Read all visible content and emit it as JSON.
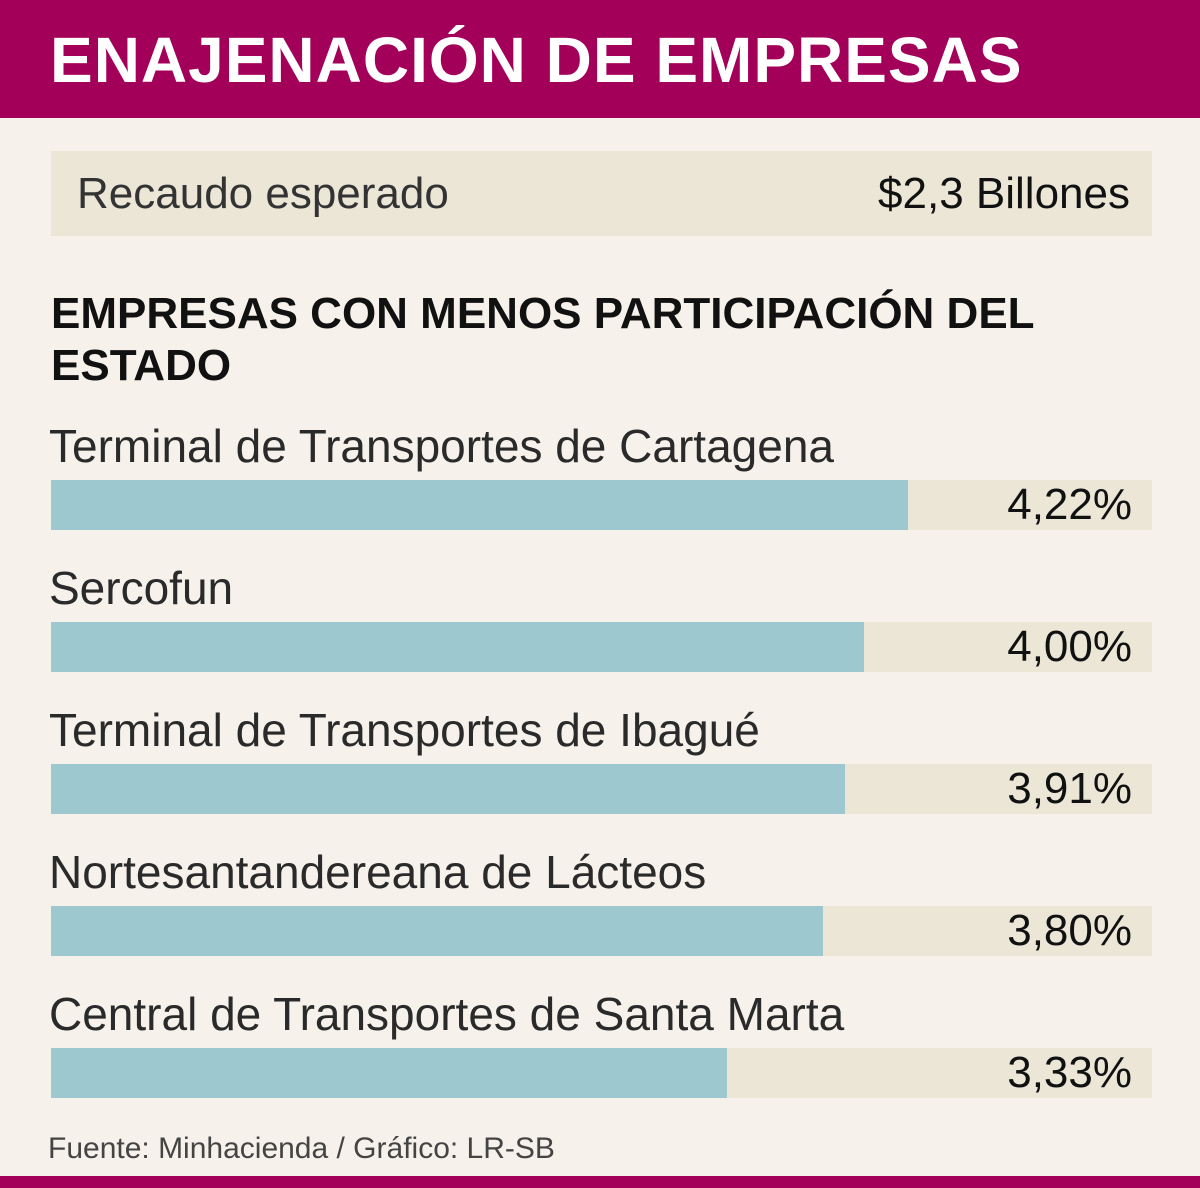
{
  "header": {
    "title": "ENAJENACIÓN DE EMPRESAS",
    "color": "#a3005a"
  },
  "recaudo": {
    "label": "Recaudo esperado",
    "value": "$2,3 Billones"
  },
  "subtitle": "EMPRESAS CON MENOS PARTICIPACIÓN DEL ESTADO",
  "source": "Fuente:  Minhacienda / Gráfico: LR-SB",
  "chart_data": {
    "type": "bar",
    "orientation": "horizontal",
    "title": "EMPRESAS CON MENOS PARTICIPACIÓN DEL ESTADO",
    "categories": [
      "Terminal de Transportes de Cartagena",
      "Sercofun",
      "Terminal de Transportes de Ibagué",
      "Nortesantandereana de Lácteos",
      "Central de Transportes de Santa Marta"
    ],
    "values": [
      4.22,
      4.0,
      3.91,
      3.8,
      3.33
    ],
    "value_labels": [
      "4,22%",
      "4,00%",
      "3,91%",
      "3,80%",
      "3,33%"
    ],
    "unit": "%",
    "xlim": [
      0,
      5.42
    ],
    "grid": false,
    "legend": "none",
    "bar_color": "#9ec8d0",
    "track_color": "#ece6d7"
  }
}
